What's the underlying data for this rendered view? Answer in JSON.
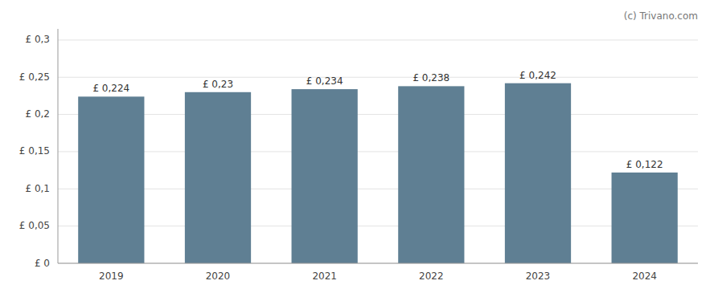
{
  "chart_data": {
    "type": "bar",
    "categories": [
      "2019",
      "2020",
      "2021",
      "2022",
      "2023",
      "2024"
    ],
    "values": [
      0.224,
      0.23,
      0.234,
      0.238,
      0.242,
      0.122
    ],
    "value_labels": [
      "£ 0,224",
      "£ 0,23",
      "£ 0,234",
      "£ 0,238",
      "£ 0,242",
      "£ 0,122"
    ],
    "color": "#5f7f93",
    "ylim": [
      0,
      0.315
    ],
    "yticks": [
      {
        "value": 0,
        "label": "£ 0"
      },
      {
        "value": 0.05,
        "label": "£ 0,05"
      },
      {
        "value": 0.1,
        "label": "£ 0,1"
      },
      {
        "value": 0.15,
        "label": "£ 0,15"
      },
      {
        "value": 0.2,
        "label": "£ 0,2"
      },
      {
        "value": 0.25,
        "label": "£ 0,25"
      },
      {
        "value": 0.3,
        "label": "£ 0,3"
      }
    ],
    "grid": true,
    "data_labels": true,
    "annotations": [
      "(c) Trivano.com"
    ]
  }
}
